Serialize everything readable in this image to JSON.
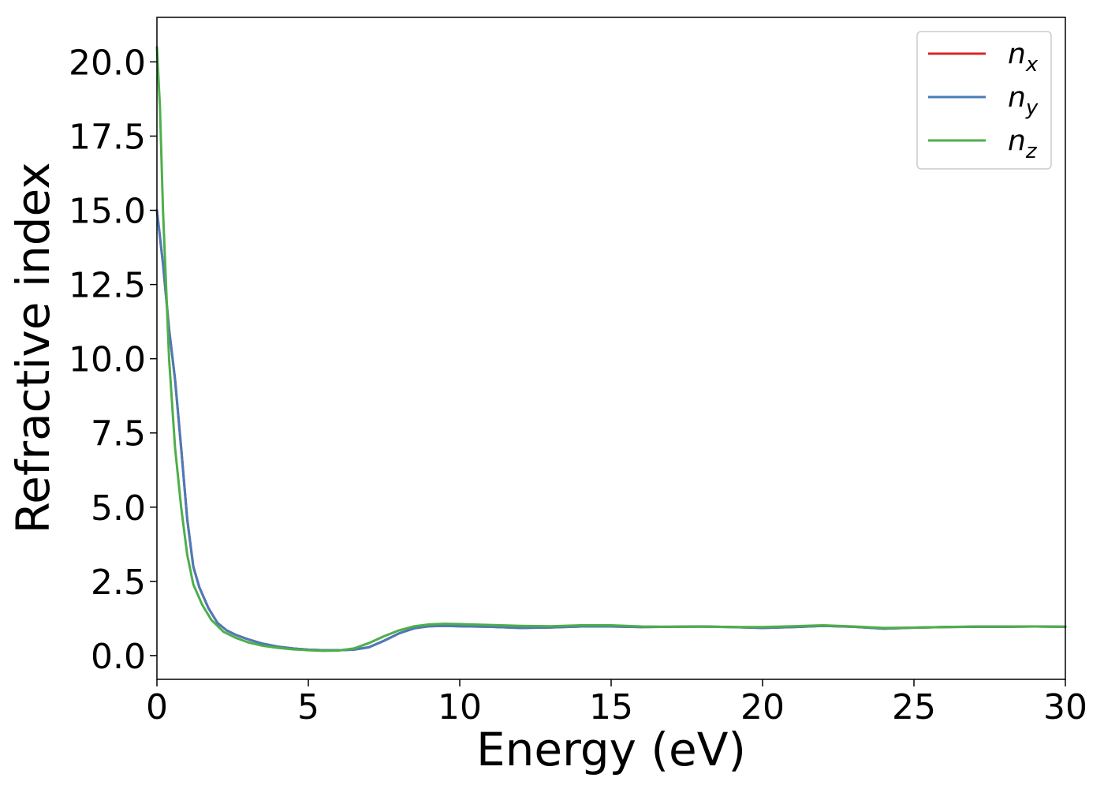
{
  "chart_data": {
    "type": "line",
    "title": "",
    "xlabel": "Energy (eV)",
    "ylabel": "Refractive index",
    "xlim": [
      0,
      30
    ],
    "ylim": [
      -0.8,
      21.5
    ],
    "xticks": [
      0,
      5,
      10,
      15,
      20,
      25,
      30
    ],
    "xtick_labels": [
      "0",
      "5",
      "10",
      "15",
      "20",
      "25",
      "30"
    ],
    "yticks": [
      0.0,
      2.5,
      5.0,
      7.5,
      10.0,
      12.5,
      15.0,
      17.5,
      20.0
    ],
    "ytick_labels": [
      "0.0",
      "2.5",
      "5.0",
      "7.5",
      "10.0",
      "12.5",
      "15.0",
      "17.5",
      "20.0"
    ],
    "grid": false,
    "legend_position": "top-right",
    "series": [
      {
        "name": "n_x",
        "label_main": "n",
        "label_sub": "x",
        "color": "#d62728",
        "x": [
          0,
          0.2,
          0.4,
          0.6,
          0.8,
          1.0,
          1.2,
          1.4,
          1.7,
          2.0,
          2.3,
          2.6,
          3.0,
          3.5,
          4.0,
          4.5,
          5.0,
          5.5,
          6.0,
          6.5,
          7.0,
          7.5,
          8.0,
          8.5,
          9.0,
          9.5,
          10,
          11,
          12,
          13,
          14,
          15,
          16,
          17,
          18,
          19,
          20,
          21,
          22,
          23,
          24,
          25,
          26,
          27,
          28,
          29,
          30
        ],
        "y": [
          15.0,
          13.2,
          11.0,
          9.3,
          7.0,
          4.6,
          3.0,
          2.3,
          1.6,
          1.1,
          0.85,
          0.7,
          0.55,
          0.4,
          0.3,
          0.24,
          0.2,
          0.18,
          0.18,
          0.2,
          0.28,
          0.5,
          0.75,
          0.92,
          0.99,
          1.0,
          0.99,
          0.97,
          0.93,
          0.95,
          0.98,
          0.98,
          0.96,
          0.97,
          0.98,
          0.96,
          0.93,
          0.96,
          1.0,
          0.97,
          0.91,
          0.94,
          0.96,
          0.97,
          0.97,
          0.98,
          0.97
        ]
      },
      {
        "name": "n_y",
        "label_main": "n",
        "label_sub": "y",
        "color": "#4a7bb7",
        "x": [
          0,
          0.2,
          0.4,
          0.6,
          0.8,
          1.0,
          1.2,
          1.4,
          1.7,
          2.0,
          2.3,
          2.6,
          3.0,
          3.5,
          4.0,
          4.5,
          5.0,
          5.5,
          6.0,
          6.5,
          7.0,
          7.5,
          8.0,
          8.5,
          9.0,
          9.5,
          10,
          11,
          12,
          13,
          14,
          15,
          16,
          17,
          18,
          19,
          20,
          21,
          22,
          23,
          24,
          25,
          26,
          27,
          28,
          29,
          30
        ],
        "y": [
          15.0,
          13.2,
          11.0,
          9.3,
          7.0,
          4.6,
          3.0,
          2.3,
          1.6,
          1.1,
          0.85,
          0.7,
          0.55,
          0.4,
          0.3,
          0.24,
          0.2,
          0.18,
          0.18,
          0.2,
          0.28,
          0.5,
          0.75,
          0.92,
          0.99,
          1.0,
          0.99,
          0.97,
          0.93,
          0.95,
          0.98,
          0.98,
          0.96,
          0.97,
          0.98,
          0.96,
          0.93,
          0.96,
          1.0,
          0.97,
          0.91,
          0.94,
          0.96,
          0.97,
          0.97,
          0.98,
          0.97
        ]
      },
      {
        "name": "n_z",
        "label_main": "n",
        "label_sub": "z",
        "color": "#4daf4a",
        "x": [
          0,
          0.1,
          0.2,
          0.4,
          0.6,
          0.8,
          1.0,
          1.2,
          1.5,
          1.8,
          2.2,
          2.6,
          3.0,
          3.5,
          4.0,
          4.5,
          5.0,
          5.5,
          6.0,
          6.5,
          7.0,
          7.5,
          8.0,
          8.5,
          9.0,
          9.5,
          10,
          11,
          12,
          13,
          14,
          15,
          16,
          17,
          18,
          19,
          20,
          21,
          22,
          23,
          24,
          25,
          26,
          27,
          28,
          29,
          30
        ],
        "y": [
          20.5,
          18.5,
          15.0,
          10.0,
          7.0,
          5.0,
          3.4,
          2.4,
          1.7,
          1.2,
          0.8,
          0.6,
          0.45,
          0.33,
          0.26,
          0.21,
          0.18,
          0.16,
          0.17,
          0.24,
          0.42,
          0.65,
          0.85,
          0.99,
          1.05,
          1.07,
          1.06,
          1.03,
          1.0,
          0.99,
          1.02,
          1.02,
          0.98,
          0.97,
          0.97,
          0.96,
          0.96,
          0.99,
          1.02,
          0.98,
          0.93,
          0.94,
          0.96,
          0.98,
          0.98,
          0.98,
          0.97
        ]
      }
    ]
  }
}
